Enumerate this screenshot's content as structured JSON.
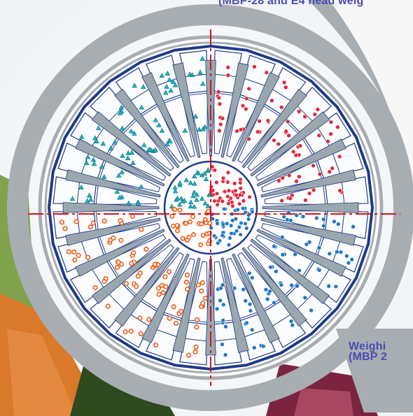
{
  "captions": {
    "top": "(MBP-28 and E4 head weig",
    "bottom_line1": "Weighi",
    "bottom_line2": "(MBP 2"
  },
  "diagram": {
    "quadrants": [
      {
        "name": "upper-left",
        "color": "#1fb3c4",
        "marker": "triangle"
      },
      {
        "name": "upper-right",
        "color": "#e02a3c",
        "marker": "circle"
      },
      {
        "name": "lower-right",
        "color": "#1f78c8",
        "marker": "circle"
      },
      {
        "name": "lower-left",
        "color": "#f05a14",
        "marker": "ring"
      }
    ],
    "bucket_count": 28,
    "frame_color": "#1d3a8a",
    "chute_color": "#9aa7ad",
    "axis_color": "#d4141c",
    "ring_color": "#a8adb2"
  }
}
